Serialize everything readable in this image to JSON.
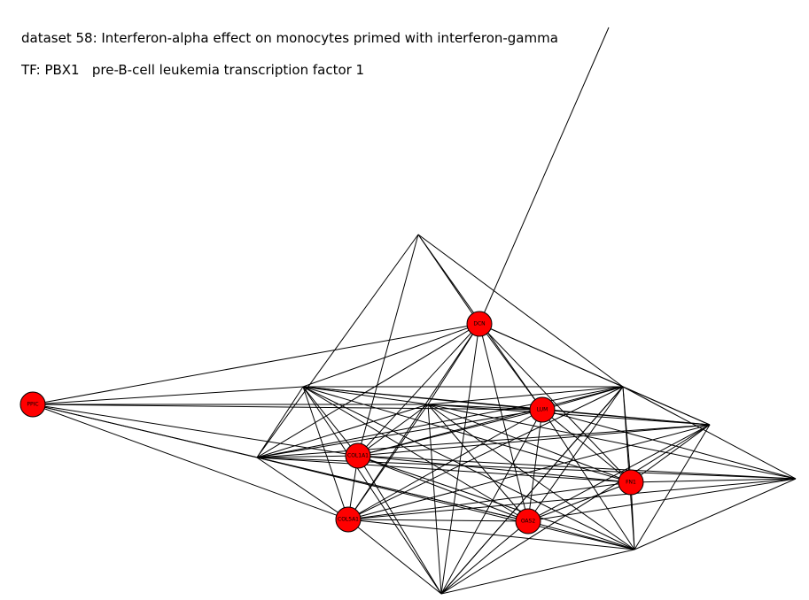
{
  "title": {
    "dataset_line": "dataset 58: Interferon-alpha effect on monocytes primed with interferon-gamma",
    "tf_line": "TF: PBX1   pre-B-cell leukemia transcription factor 1"
  },
  "colors": {
    "node_fill": "#ff0000",
    "node_stroke": "#000000",
    "edge": "#000000"
  },
  "graph": {
    "labeled_nodes": [
      {
        "id": "DCN",
        "label": "DCN"
      },
      {
        "id": "PPIC",
        "label": "PPIC"
      },
      {
        "id": "LUM",
        "label": "LUM"
      },
      {
        "id": "COL1A1",
        "label": "COL1A1"
      },
      {
        "id": "FN1",
        "label": "FN1"
      },
      {
        "id": "COL5A1",
        "label": "COL5A1"
      },
      {
        "id": "OAS2",
        "label": "OAS2"
      }
    ],
    "hidden_nodes": [
      "T",
      "B",
      "P1",
      "P2",
      "P3",
      "P4",
      "P5",
      "P6",
      "P7"
    ]
  }
}
